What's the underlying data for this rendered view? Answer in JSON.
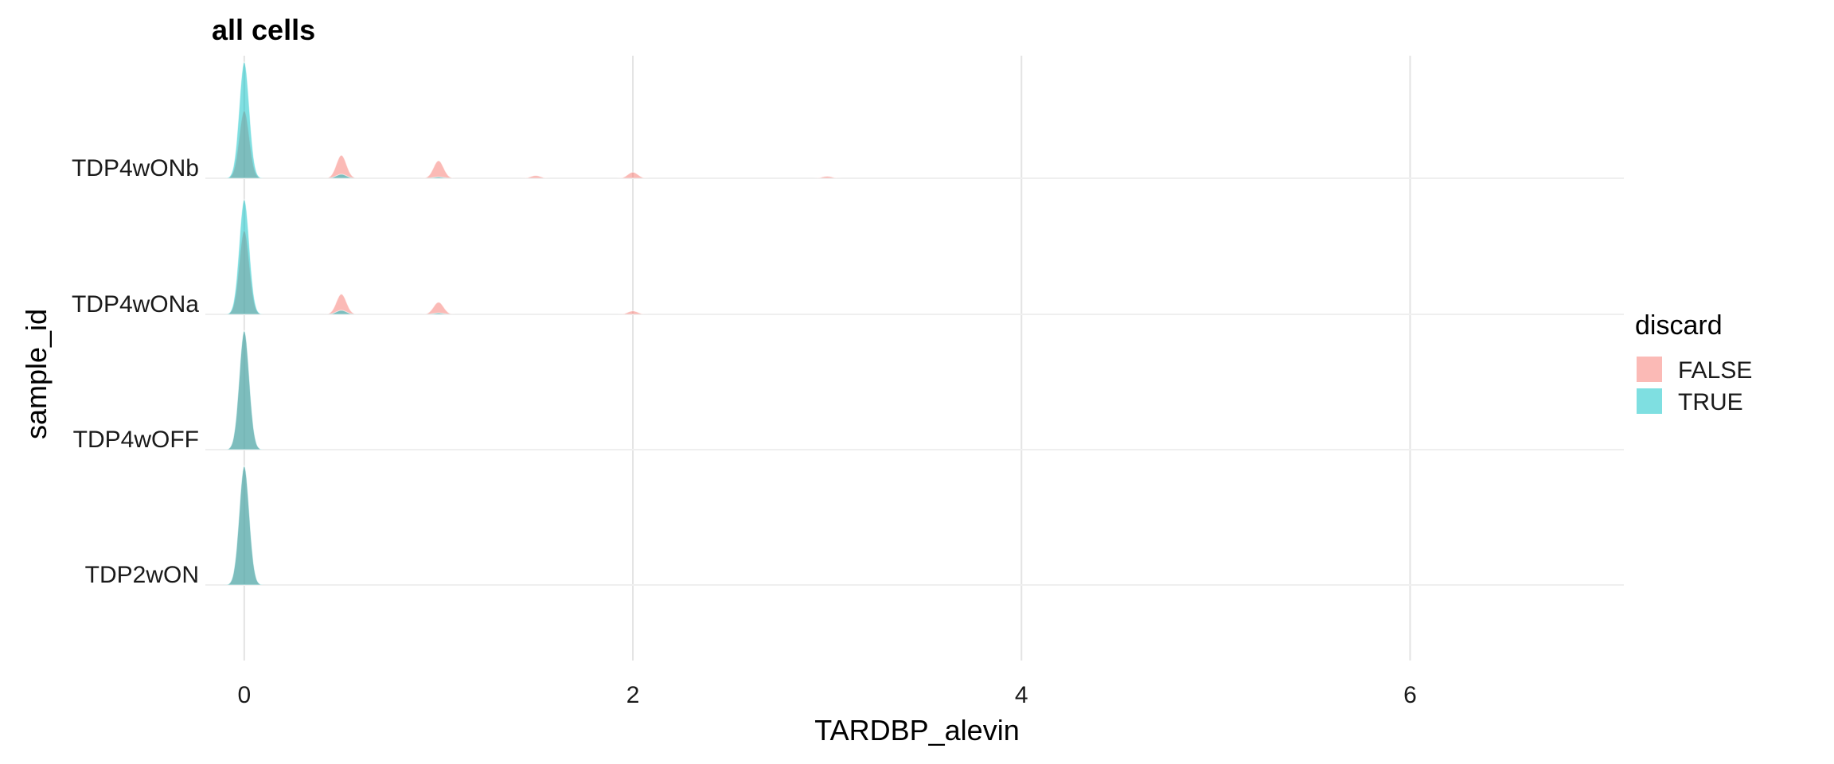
{
  "chart_data": {
    "type": "ridgeline",
    "title": "all cells",
    "xlabel": "TARDBP_alevin",
    "ylabel": "sample_id",
    "xlim": [
      -0.2,
      7.1
    ],
    "x_ticks": [
      0,
      2,
      4,
      6
    ],
    "x_tick_labels": [
      "0",
      "2",
      "4",
      "6"
    ],
    "grid": true,
    "legend": {
      "title": "discard",
      "position": "right"
    },
    "categories": [
      "TDP2wON",
      "TDP4wOFF",
      "TDP4wONa",
      "TDP4wONb"
    ],
    "series": [
      {
        "name": "FALSE",
        "color": "#F8766D",
        "ridges": [
          {
            "category": "TDP2wON",
            "peaks": [
              {
                "x": 0,
                "height": 0.88
              }
            ]
          },
          {
            "category": "TDP4wOFF",
            "peaks": [
              {
                "x": 0,
                "height": 0.88
              }
            ]
          },
          {
            "category": "TDP4wONa",
            "peaks": [
              {
                "x": 0,
                "height": 0.62
              },
              {
                "x": 0.5,
                "height": 0.15
              },
              {
                "x": 1,
                "height": 0.09
              },
              {
                "x": 2,
                "height": 0.025
              }
            ]
          },
          {
            "category": "TDP4wONb",
            "peaks": [
              {
                "x": 0,
                "height": 0.5
              },
              {
                "x": 0.5,
                "height": 0.17
              },
              {
                "x": 1,
                "height": 0.13
              },
              {
                "x": 1.5,
                "height": 0.02
              },
              {
                "x": 2,
                "height": 0.045
              },
              {
                "x": 3,
                "height": 0.015
              }
            ]
          }
        ]
      },
      {
        "name": "TRUE",
        "color": "#00BFC4",
        "ridges": [
          {
            "category": "TDP2wON",
            "peaks": [
              {
                "x": 0,
                "height": 0.88
              }
            ]
          },
          {
            "category": "TDP4wOFF",
            "peaks": [
              {
                "x": 0,
                "height": 0.88
              }
            ]
          },
          {
            "category": "TDP4wONa",
            "peaks": [
              {
                "x": 0,
                "height": 0.85
              },
              {
                "x": 0.5,
                "height": 0.03
              },
              {
                "x": 1,
                "height": 0.01
              }
            ]
          },
          {
            "category": "TDP4wONb",
            "peaks": [
              {
                "x": 0,
                "height": 0.86
              },
              {
                "x": 0.5,
                "height": 0.03
              },
              {
                "x": 1,
                "height": 0.01
              }
            ]
          }
        ]
      }
    ]
  }
}
